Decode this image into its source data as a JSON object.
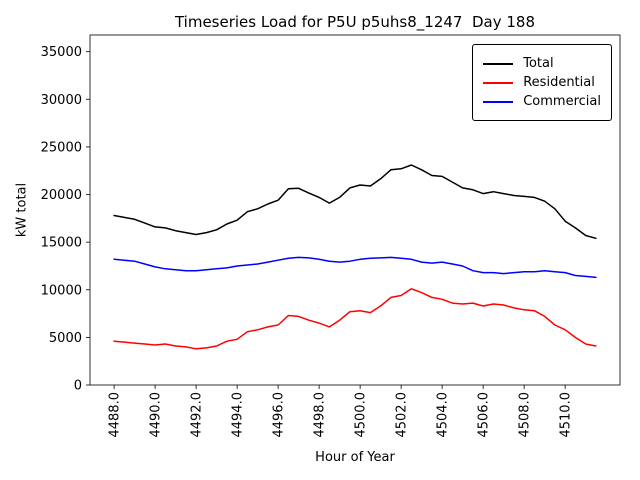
{
  "chart_data": {
    "type": "line",
    "title": "Timeseries Load for P5U p5uhs8_1247  Day 188",
    "xlabel": "Hour of Year",
    "ylabel": "kW total",
    "grid": false,
    "legend_position": "upper right",
    "xlim": [
      4486.825,
      4512.675
    ],
    "ylim": [
      0,
      36750
    ],
    "xticks": [
      4488,
      4490,
      4492,
      4494,
      4496,
      4498,
      4500,
      4502,
      4504,
      4506,
      4508,
      4510
    ],
    "xtick_labels": [
      "4488.0",
      "4490.0",
      "4492.0",
      "4494.0",
      "4496.0",
      "4498.0",
      "4500.0",
      "4502.0",
      "4504.0",
      "4506.0",
      "4508.0",
      "4510.0"
    ],
    "yticks": [
      0,
      5000,
      10000,
      15000,
      20000,
      25000,
      30000,
      35000
    ],
    "ytick_labels": [
      "0",
      "5000",
      "10000",
      "15000",
      "20000",
      "25000",
      "30000",
      "35000"
    ],
    "x": [
      4488,
      4488.5,
      4489,
      4489.5,
      4490,
      4490.5,
      4491,
      4491.5,
      4492,
      4492.5,
      4493,
      4493.5,
      4494,
      4494.5,
      4495,
      4495.5,
      4496,
      4496.5,
      4497,
      4497.5,
      4498,
      4498.5,
      4499,
      4499.5,
      4500,
      4500.5,
      4501,
      4501.5,
      4502,
      4502.5,
      4503,
      4503.5,
      4504,
      4504.5,
      4505,
      4505.5,
      4506,
      4506.5,
      4507,
      4507.5,
      4508,
      4508.5,
      4509,
      4509.5,
      4510,
      4510.5,
      4511,
      4511.5
    ],
    "series": [
      {
        "name": "Total",
        "color": "#000000",
        "values": [
          17800,
          17600,
          17400,
          17000,
          16600,
          16500,
          16200,
          16000,
          15800,
          16000,
          16300,
          16900,
          17300,
          18200,
          18500,
          19000,
          19400,
          20600,
          20650,
          20150,
          19700,
          19100,
          19700,
          20700,
          21000,
          20900,
          21650,
          22600,
          22700,
          23100,
          22600,
          22000,
          21900,
          21300,
          20700,
          20500,
          20100,
          20300,
          20100,
          19900,
          19800,
          19700,
          19300,
          18500,
          17200,
          16500,
          15700,
          15400
        ]
      },
      {
        "name": "Residential",
        "color": "#ff0000",
        "values": [
          4600,
          4500,
          4400,
          4300,
          4200,
          4300,
          4100,
          4000,
          3800,
          3900,
          4100,
          4600,
          4800,
          5600,
          5800,
          6100,
          6300,
          7300,
          7200,
          6800,
          6500,
          6100,
          6800,
          7700,
          7800,
          7600,
          8300,
          9200,
          9400,
          10100,
          9700,
          9200,
          9000,
          8600,
          8500,
          8600,
          8300,
          8500,
          8400,
          8100,
          7900,
          7800,
          7200,
          6300,
          5800,
          5000,
          4300,
          4100
        ]
      },
      {
        "name": "Commercial",
        "color": "#0000ff",
        "values": [
          13200,
          13100,
          13000,
          12700,
          12400,
          12200,
          12100,
          12000,
          12000,
          12100,
          12200,
          12300,
          12500,
          12600,
          12700,
          12900,
          13100,
          13300,
          13400,
          13350,
          13200,
          13000,
          12900,
          13000,
          13200,
          13300,
          13350,
          13400,
          13300,
          13200,
          12900,
          12800,
          12900,
          12700,
          12500,
          12000,
          11800,
          11800,
          11700,
          11800,
          11900,
          11900,
          12000,
          11900,
          11800,
          11500,
          11400,
          11300
        ]
      }
    ]
  }
}
